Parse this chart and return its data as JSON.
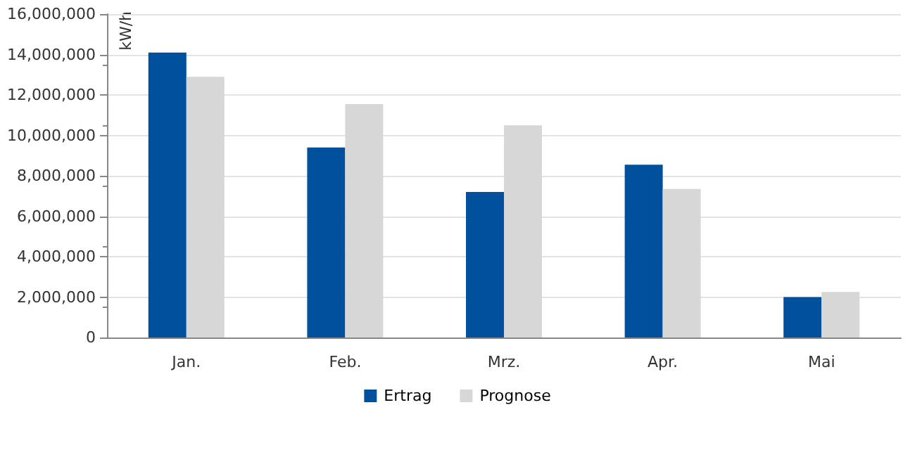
{
  "chart_data": {
    "type": "bar",
    "categories": [
      "Jan.",
      "Feb.",
      "Mrz.",
      "Apr.",
      "Mai"
    ],
    "ylabel": "kW/h",
    "series": [
      {
        "name": "Ertrag",
        "color": "#00509e",
        "values": [
          14100000,
          9400000,
          7200000,
          8550000,
          2000000
        ]
      },
      {
        "name": "Prognose",
        "color": "#d7d7d7",
        "values": [
          12900000,
          11550000,
          10500000,
          7350000,
          2250000
        ]
      }
    ],
    "ylim": [
      0,
      16000000
    ],
    "yticks": [
      0,
      {
        "value": 2000000,
        "label": "2,000,000"
      },
      {
        "value": 4000000,
        "label": "4,000,000"
      },
      {
        "value": 6000000,
        "label": "6,000,000"
      },
      {
        "value": 8000000,
        "label": "8,000,000"
      },
      {
        "value": 10000000,
        "label": "10,000,000"
      },
      {
        "value": 12000000,
        "label": "12,000,000"
      },
      {
        "value": 14000000,
        "label": "14,000,000"
      },
      {
        "value": 16000000,
        "label": "16,000,000"
      }
    ],
    "grid": "y",
    "legend": "bottom"
  }
}
